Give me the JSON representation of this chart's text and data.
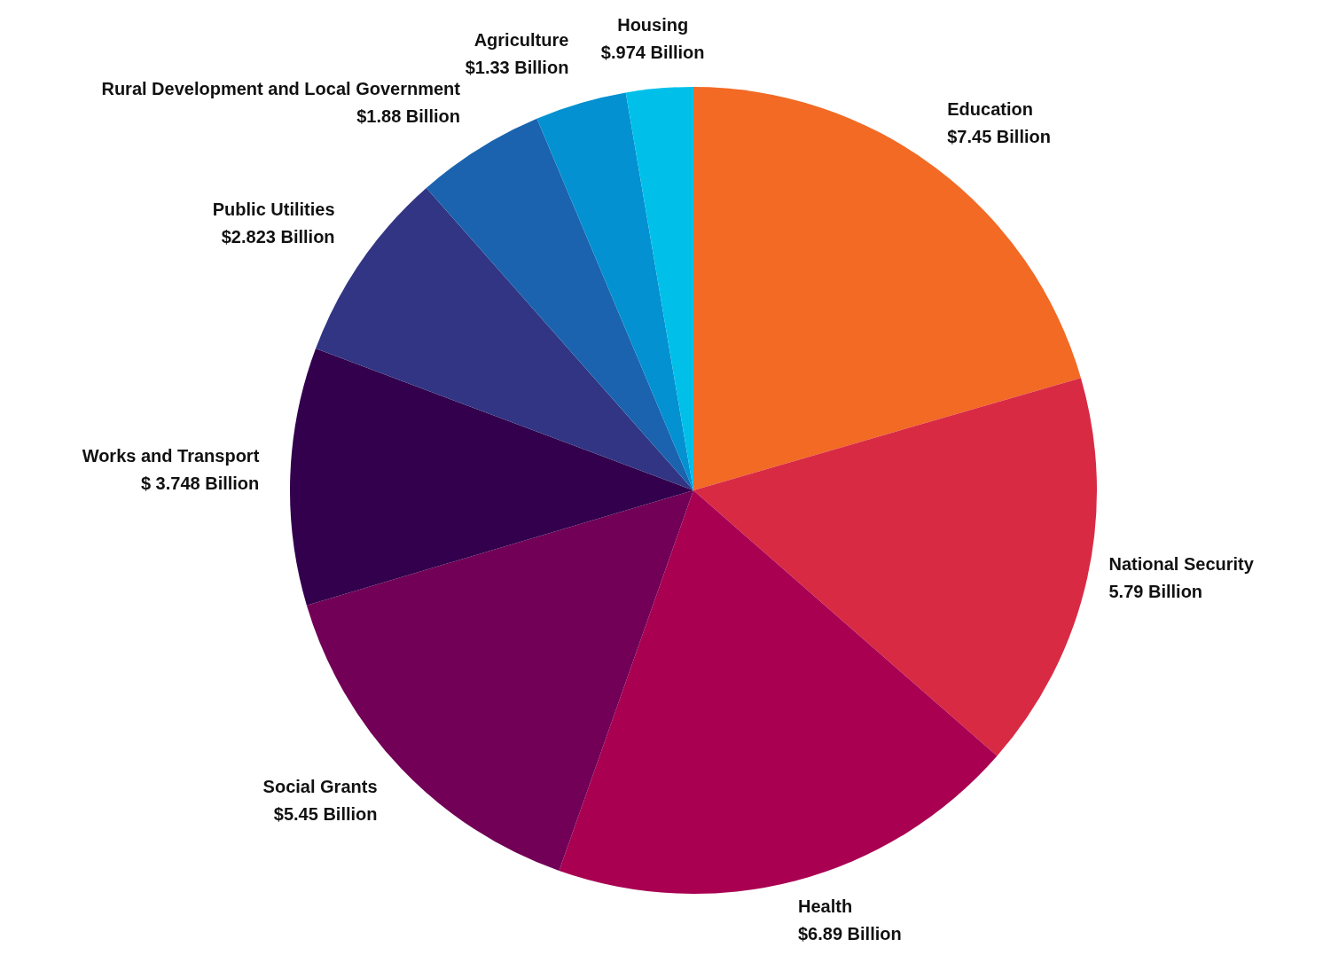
{
  "chart_data": {
    "type": "pie",
    "categories": [
      "Education",
      "National Security",
      "Health",
      "Social Grants",
      "Works and Transport",
      "Public Utilities",
      "Rural Development and Local Government",
      "Agriculture",
      "Housing"
    ],
    "values": [
      7.45,
      5.79,
      6.89,
      5.45,
      3.748,
      2.823,
      1.88,
      1.33,
      0.974
    ],
    "value_labels": [
      "$7.45 Billion",
      "5.79 Billion",
      "$6.89 Billion",
      "$5.45 Billion",
      "$ 3.748 Billion",
      "$2.823 Billion",
      "$1.88 Billion",
      "$1.33 Billion",
      "$.974 Billion"
    ],
    "colors": [
      "#f26a24",
      "#d92a44",
      "#a90052",
      "#710056",
      "#33004d",
      "#313583",
      "#1b63ae",
      "#0491d1",
      "#00c0ea"
    ],
    "legend": false
  }
}
